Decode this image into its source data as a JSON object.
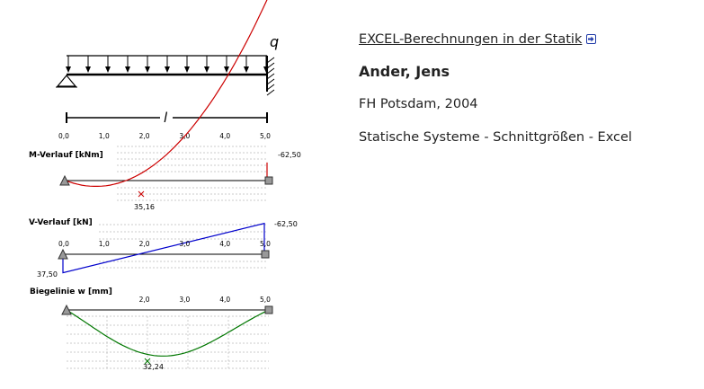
{
  "publication": {
    "title_link": "EXCEL-Berechnungen in der Statik",
    "author": "Ander, Jens",
    "publisher_year": "FH Potsdam, 2004",
    "description": "Statische Systeme - Schnittgrößen - Excel"
  },
  "figure": {
    "load_label": "q",
    "length_label": "l",
    "x_ticks": [
      "0,0",
      "1,0",
      "2,0",
      "3,0",
      "4,0",
      "5,0"
    ],
    "moment": {
      "title": "M-Verlauf [kNm]",
      "max_label": "35,16",
      "end_label": "-62,50",
      "color": "#cc0000"
    },
    "shear": {
      "title": "V-Verlauf [kN]",
      "start_label": "37,50",
      "end_label": "-62,50",
      "color": "#0000cc"
    },
    "deflection": {
      "title": "Biegelinie w [mm]",
      "max_label": "32,24",
      "color": "#007700"
    }
  },
  "chart_data": [
    {
      "type": "line",
      "title": "M-Verlauf [kNm]",
      "x": [
        0,
        0.5,
        1,
        1.5,
        1.875,
        2.5,
        3,
        3.5,
        4,
        4.5,
        5
      ],
      "values": [
        0,
        -16.25,
        -27.5,
        -33.75,
        -35.16,
        -31.25,
        -22.5,
        -8.75,
        10,
        33.75,
        62.5
      ]
    },
    {
      "type": "line",
      "title": "V-Verlauf [kN]",
      "x": [
        0,
        1,
        2,
        3,
        4,
        5
      ],
      "values": [
        -37.5,
        -17.5,
        2.5,
        22.5,
        42.5,
        62.5
      ]
    },
    {
      "type": "line",
      "title": "Biegelinie w [mm]",
      "x": [
        0,
        2.0,
        5
      ],
      "values": [
        0,
        32.24,
        0
      ]
    }
  ]
}
